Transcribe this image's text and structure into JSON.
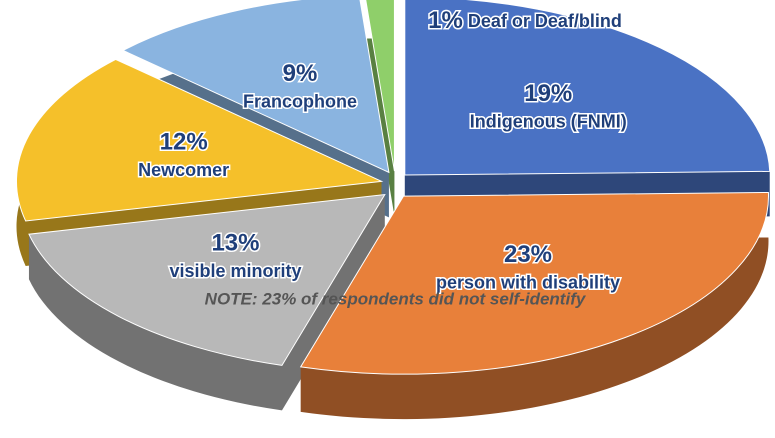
{
  "chart_data": {
    "type": "pie",
    "categories": [
      "Indigenous (FNMI)",
      "person with disability",
      "visible minority",
      "Newcomer",
      "Francophone",
      "Deaf or Deaf/blind"
    ],
    "values": [
      19,
      23,
      13,
      12,
      9,
      1
    ],
    "value_labels": [
      "19%",
      "23%",
      "13%",
      "12%",
      "9%",
      "1%"
    ],
    "colors": [
      "#4a72c4",
      "#e8803a",
      "#b8b8b8",
      "#f5c02a",
      "#8ab4e0",
      "#8fcf6a"
    ],
    "annotation": "NOTE: 23% of respondents did not self-identify"
  }
}
